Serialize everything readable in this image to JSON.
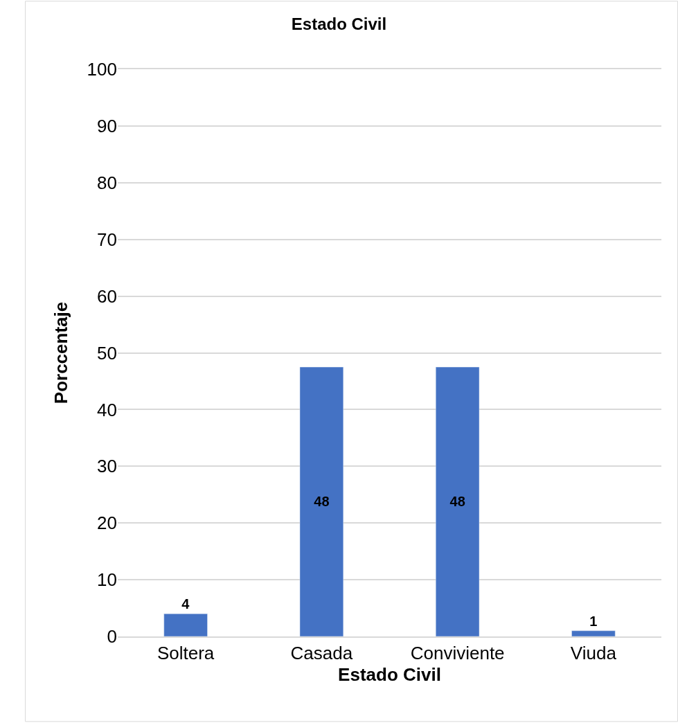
{
  "chart_data": {
    "type": "bar",
    "title": "Estado Civil",
    "xlabel": "Estado Civil",
    "ylabel": "Porccentaje",
    "categories": [
      "Soltera",
      "Casada",
      "Conviviente",
      "Viuda"
    ],
    "values": [
      4,
      47.5,
      47.5,
      1
    ],
    "value_labels": [
      "4",
      "48",
      "48",
      "1"
    ],
    "color": "#4472c4",
    "ylim": [
      0,
      100
    ],
    "yticks": [
      0,
      10,
      20,
      30,
      40,
      50,
      60,
      70,
      80,
      90,
      100
    ],
    "grid": "y"
  }
}
